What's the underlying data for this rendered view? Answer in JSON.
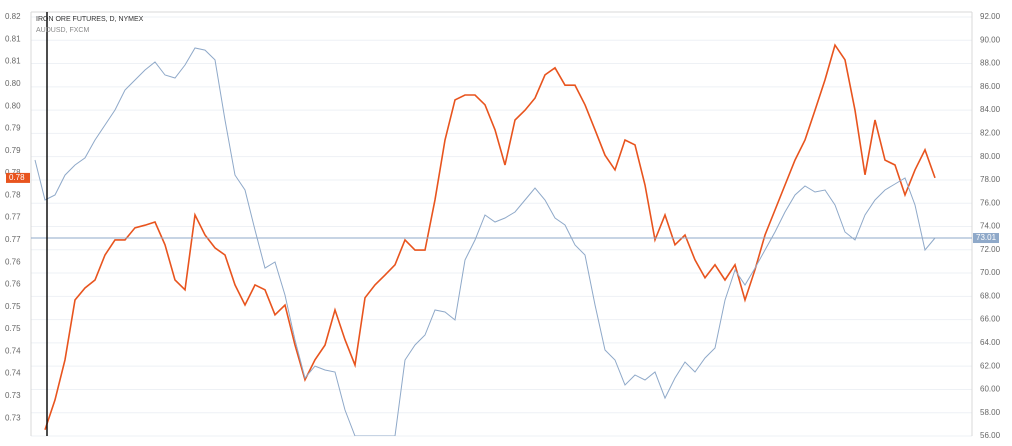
{
  "chart_data": {
    "type": "line",
    "series": [
      {
        "name": "AUDUSD, FXCM",
        "color": "#e8541e",
        "axis": "y",
        "last_value_label": "0.78",
        "values": [
          null,
          0.7274,
          0.7341,
          0.7431,
          0.7565,
          0.7592,
          0.761,
          0.7666,
          0.77,
          0.77,
          0.7727,
          0.7733,
          0.774,
          0.7689,
          0.761,
          0.7588,
          0.7756,
          0.7711,
          0.7682,
          0.7666,
          0.7599,
          0.7554,
          0.7599,
          0.7588,
          0.7532,
          0.7554,
          0.7464,
          0.7386,
          0.7431,
          0.7464,
          0.7543,
          0.7476,
          0.7419,
          0.757,
          0.7599,
          0.7621,
          0.7644,
          0.77,
          0.7677,
          0.7677,
          0.779,
          0.7924,
          0.8014,
          0.8025,
          0.8025,
          0.8003,
          0.7947,
          0.7868,
          0.7969,
          0.7991,
          0.8018,
          0.807,
          0.8086,
          0.8047,
          0.8047,
          0.8003,
          0.7947,
          0.789,
          0.7857,
          0.7924,
          0.7913,
          0.7823,
          0.77,
          0.7756,
          0.7689,
          0.7711,
          0.7655,
          0.7615,
          0.7644,
          0.761,
          0.7644,
          0.7565,
          0.7633,
          0.7711,
          0.7767,
          0.7823,
          0.7879,
          0.7924,
          0.7991,
          0.8059,
          0.8137,
          0.8104,
          0.7991,
          0.7846,
          0.7969,
          0.7879,
          0.7868,
          0.7801,
          0.7857,
          0.7902,
          0.7839
        ]
      },
      {
        "name": "IRON ORE FUTURES, D, NYMEX",
        "color": "#8fa9c9",
        "axis": "y2",
        "last_value_label": "73.01",
        "values": [
          79.71,
          76.28,
          76.71,
          78.42,
          79.28,
          79.89,
          81.43,
          82.72,
          84.01,
          85.73,
          86.59,
          87.45,
          88.13,
          87.02,
          86.76,
          87.88,
          89.34,
          89.16,
          88.31,
          83.15,
          78.42,
          77.14,
          73.7,
          70.43,
          70.95,
          68.11,
          64.25,
          60.98,
          62.01,
          61.67,
          61.5,
          58.23,
          56,
          56,
          56,
          56,
          56,
          62.53,
          63.82,
          64.68,
          66.83,
          66.65,
          65.97,
          71.12,
          72.84,
          74.99,
          74.39,
          74.73,
          75.25,
          76.28,
          77.31,
          76.28,
          74.73,
          74.13,
          72.41,
          71.55,
          67.26,
          63.39,
          62.53,
          60.38,
          61.24,
          60.81,
          61.5,
          59.26,
          60.98,
          62.36,
          61.5,
          62.7,
          63.56,
          67.68,
          70.26,
          68.97,
          70.43,
          71.98,
          73.53,
          75.25,
          76.71,
          77.48,
          76.96,
          77.14,
          75.85,
          73.53,
          72.84,
          74.99,
          76.28,
          77.14,
          77.65,
          78.17,
          75.85,
          71.98,
          73.01
        ]
      }
    ],
    "ylim": [
      0.726,
      0.82
    ],
    "yticks": [
      0.82,
      {
        "value": 0.815,
        "label": "0.81"
      },
      0.81,
      {
        "value": 0.805,
        "label": "0.80"
      },
      {
        "value": 0.8,
        "label": "0.80"
      },
      {
        "value": 0.795,
        "label": "0.79"
      },
      0.79,
      {
        "value": 0.785,
        "label": "0.78"
      },
      0.78,
      {
        "value": 0.775,
        "label": "0.77"
      },
      0.77,
      {
        "value": 0.765,
        "label": "0.76"
      },
      0.76,
      {
        "value": 0.755,
        "label": "0.75"
      },
      0.75,
      {
        "value": 0.745,
        "label": "0.74"
      },
      0.74,
      {
        "value": 0.735,
        "label": "0.73"
      },
      0.73
    ],
    "y2lim": [
      56,
      92
    ],
    "y2ticks": [
      {
        "value": 92,
        "label": "92.00"
      },
      {
        "value": 90,
        "label": "90.00"
      },
      {
        "value": 88,
        "label": "88.00"
      },
      {
        "value": 86,
        "label": "86.00"
      },
      {
        "value": 84,
        "label": "84.00"
      },
      {
        "value": 82,
        "label": "82.00"
      },
      {
        "value": 80,
        "label": "80.00"
      },
      {
        "value": 78,
        "label": "78.00"
      },
      {
        "value": 76,
        "label": "76.00"
      },
      {
        "value": 74,
        "label": "74.00"
      },
      {
        "value": 72,
        "label": "72.00"
      },
      {
        "value": 70,
        "label": "70.00"
      },
      {
        "value": 68,
        "label": "68.00"
      },
      {
        "value": 66,
        "label": "66.00"
      },
      {
        "value": 64,
        "label": "64.00"
      },
      {
        "value": 62,
        "label": "62.00"
      },
      {
        "value": 60,
        "label": "60.00"
      },
      {
        "value": 58,
        "label": "58.00"
      },
      {
        "value": 56,
        "label": "56.00"
      }
    ],
    "grid": true
  }
}
